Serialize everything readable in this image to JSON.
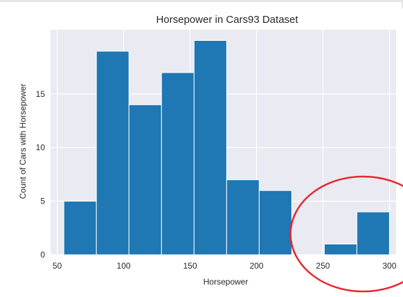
{
  "chart_data": {
    "type": "bar",
    "title": "Horsepower in Cars93 Dataset",
    "xlabel": "Horsepower",
    "ylabel": "Count of Cars with Horsepower",
    "x_ticks": [
      50,
      100,
      150,
      200,
      250,
      300
    ],
    "y_ticks": [
      0,
      5,
      10,
      15
    ],
    "xlim": [
      45,
      305
    ],
    "ylim": [
      0,
      21
    ],
    "grid": true,
    "bin_edges": [
      55,
      79.5,
      104,
      128.5,
      153,
      177.5,
      202,
      226.5,
      251,
      275.5,
      300
    ],
    "values": [
      5,
      19,
      14,
      17,
      20,
      7,
      6,
      0,
      1,
      4
    ],
    "annotation": {
      "shape": "ellipse",
      "color": "#e8262b",
      "x_range": [
        248,
        300
      ]
    }
  },
  "colors": {
    "bar": "#1f77b4",
    "plot_background": "#eaeaf2",
    "grid": "#ffffff",
    "annotation": "#e8262b"
  }
}
